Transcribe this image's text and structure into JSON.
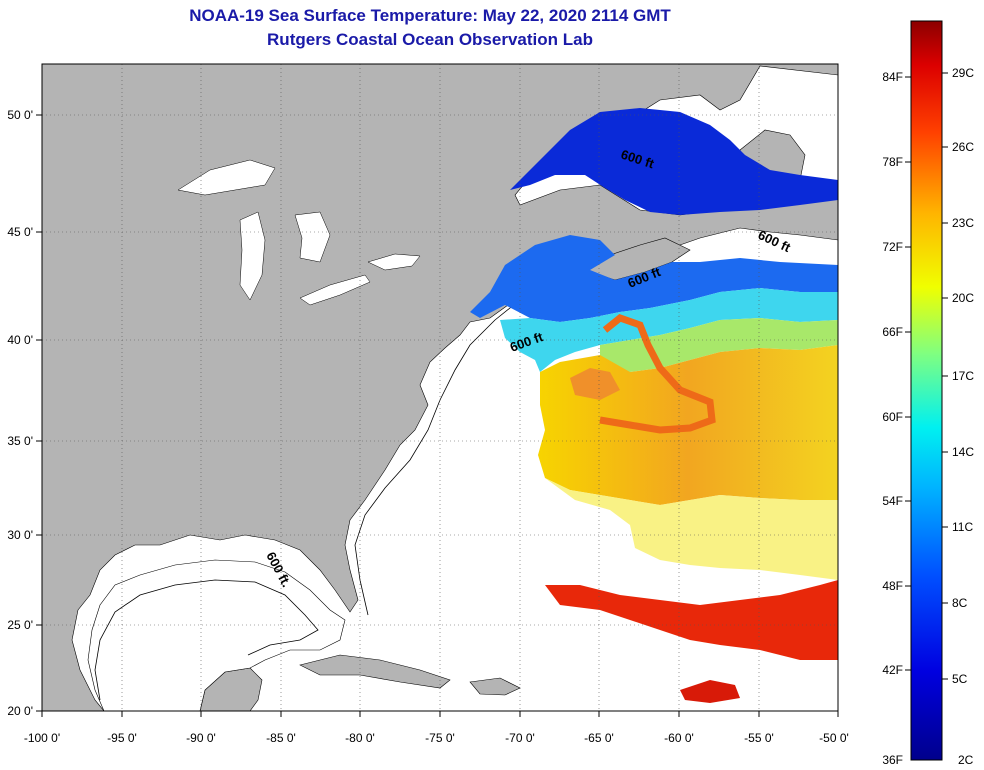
{
  "title": {
    "line1": "NOAA-19 Sea Surface Temperature:  May 22, 2020 2114 GMT",
    "line2": "Rutgers Coastal Ocean Observation Lab"
  },
  "axes": {
    "lat_labels": [
      "50 0'",
      "45 0'",
      "40 0'",
      "35 0'",
      "30 0'",
      "25 0'",
      "20 0'"
    ],
    "lon_labels": [
      "-100 0'",
      "-95 0'",
      "-90 0'",
      "-85 0'",
      "-80 0'",
      "-75 0'",
      "-70 0'",
      "-65 0'",
      "-60 0'",
      "-55 0'",
      "-50 0'"
    ]
  },
  "contour_label": "600 ft",
  "contour_label_gulf": "600 ft.",
  "colorbar": {
    "fahrenheit": [
      "84F",
      "78F",
      "72F",
      "66F",
      "60F",
      "54F",
      "48F",
      "42F",
      "36F"
    ],
    "celsius": [
      "29C",
      "26C",
      "23C",
      "20C",
      "17C",
      "14C",
      "11C",
      "8C",
      "5C",
      "2C"
    ]
  },
  "colors": {
    "land": "#b4b4b4",
    "ocean_nodata": "#ffffff",
    "title": "#1a1aa8"
  }
}
